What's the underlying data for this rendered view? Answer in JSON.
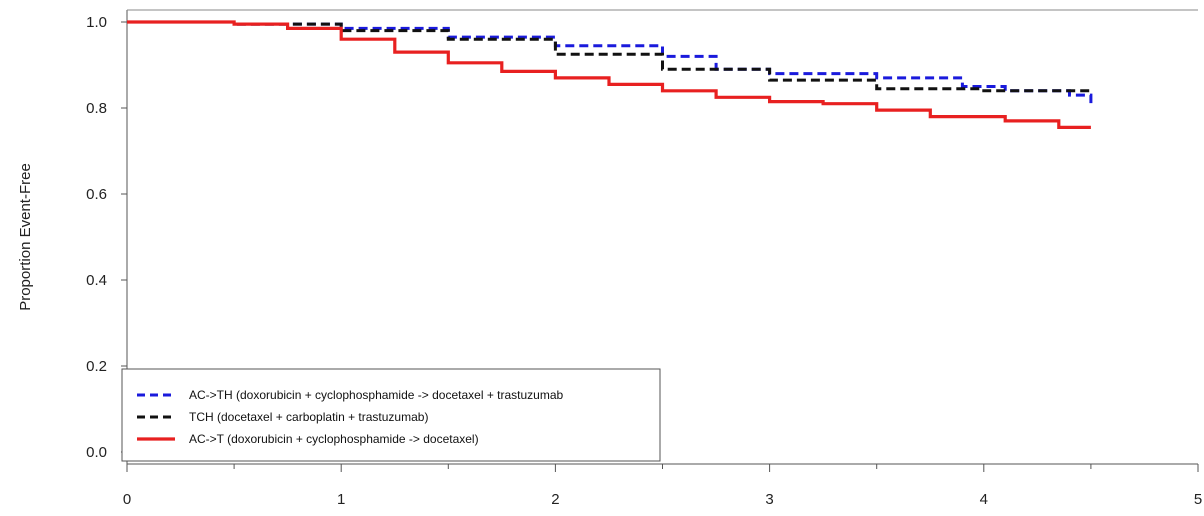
{
  "chart_data": {
    "type": "line",
    "title": "",
    "xlabel": "",
    "ylabel": "Proportion Event-Free",
    "xlim": [
      0,
      5
    ],
    "ylim": [
      0,
      1
    ],
    "x_ticks": [
      "0",
      "1",
      "2",
      "3",
      "4",
      "5"
    ],
    "y_ticks": [
      "0.0",
      "0.2",
      "0.4",
      "0.6",
      "0.8",
      "1.0"
    ],
    "grid": false,
    "legend_position": "bottom-left",
    "series": [
      {
        "name": "AC->TH (doxorubicin + cyclophosphamide -> docetaxel + trastuzumab",
        "color": "#1a1adc",
        "dash": "dashed",
        "x": [
          0,
          0.5,
          1.0,
          1.5,
          2.0,
          2.5,
          2.75,
          3.0,
          3.5,
          3.9,
          4.1,
          4.4,
          4.5
        ],
        "y": [
          1.0,
          0.995,
          0.985,
          0.965,
          0.945,
          0.92,
          0.89,
          0.88,
          0.87,
          0.85,
          0.84,
          0.83,
          0.81
        ]
      },
      {
        "name": "TCH (docetaxel + carboplatin + trastuzumab)",
        "color": "#111111",
        "dash": "dashed",
        "x": [
          0,
          0.5,
          1.0,
          1.5,
          2.0,
          2.5,
          3.0,
          3.5,
          4.0,
          4.5
        ],
        "y": [
          1.0,
          0.995,
          0.98,
          0.96,
          0.925,
          0.89,
          0.865,
          0.845,
          0.84,
          0.835
        ]
      },
      {
        "name": "AC->T (doxorubicin + cyclophosphamide -> docetaxel)",
        "color": "#e82020",
        "dash": "solid",
        "x": [
          0,
          0.5,
          0.75,
          1.0,
          1.25,
          1.5,
          1.75,
          2.0,
          2.25,
          2.5,
          2.75,
          3.0,
          3.25,
          3.5,
          3.75,
          4.0,
          4.1,
          4.35,
          4.5
        ],
        "y": [
          1.0,
          0.995,
          0.985,
          0.96,
          0.93,
          0.905,
          0.885,
          0.87,
          0.855,
          0.84,
          0.825,
          0.815,
          0.81,
          0.795,
          0.78,
          0.78,
          0.77,
          0.755,
          0.755
        ]
      }
    ]
  }
}
